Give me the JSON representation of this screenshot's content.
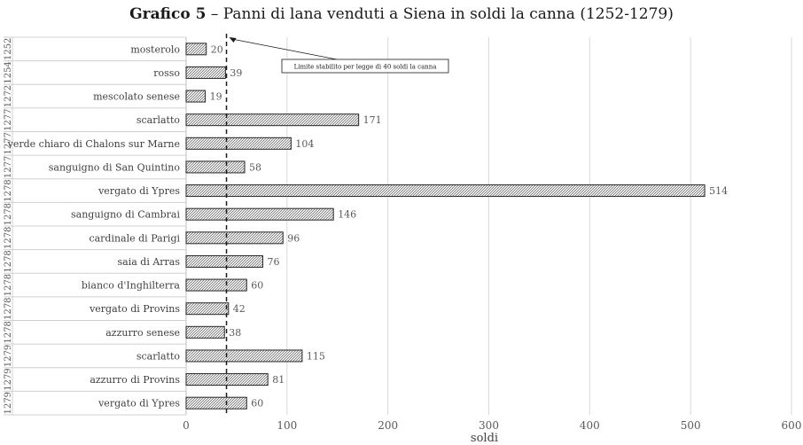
{
  "title": {
    "bold": "Grafico 5",
    "rest": " – Panni di lana venduti a Siena in soldi la canna (1252-1279)"
  },
  "chart_data": {
    "type": "bar",
    "orientation": "horizontal",
    "title": "Grafico 5 – Panni di lana venduti a Siena in soldi la canna (1252-1279)",
    "xlabel": "soldi",
    "ylabel": "",
    "xlim": [
      0,
      600
    ],
    "xticks": [
      0,
      100,
      200,
      300,
      400,
      500,
      600
    ],
    "grid": true,
    "bar_fill": "hatched gray",
    "categories": [
      {
        "year": "1252",
        "label": "mosterolo"
      },
      {
        "year": "1254",
        "label": "rosso"
      },
      {
        "year": "1272",
        "label": "mescolato senese"
      },
      {
        "year": "1277",
        "label": "scarlatto"
      },
      {
        "year": "1277",
        "label": "verde chiaro di Chalons sur Marne"
      },
      {
        "year": "1277",
        "label": "sanguigno di San Quintino"
      },
      {
        "year": "1278",
        "label": "vergato di Ypres"
      },
      {
        "year": "1278",
        "label": "sanguigno di Cambrai"
      },
      {
        "year": "1278",
        "label": "cardinale di Parigi"
      },
      {
        "year": "1278",
        "label": "saia di Arras"
      },
      {
        "year": "1278",
        "label": "bianco d'Inghilterra"
      },
      {
        "year": "1278",
        "label": "vergato di Provins"
      },
      {
        "year": "1278",
        "label": "azzurro senese"
      },
      {
        "year": "1279",
        "label": "scarlatto"
      },
      {
        "year": "1279",
        "label": "azzurro di Provins"
      },
      {
        "year": "1279",
        "label": "vergato di Ypres"
      }
    ],
    "values": [
      20,
      39,
      19,
      171,
      104,
      58,
      514,
      146,
      96,
      76,
      60,
      42,
      38,
      115,
      81,
      60
    ],
    "reference_line": {
      "value": 40,
      "style": "dashed"
    },
    "annotation": "Limite stabilito per legge di 40 soldi la canna"
  }
}
